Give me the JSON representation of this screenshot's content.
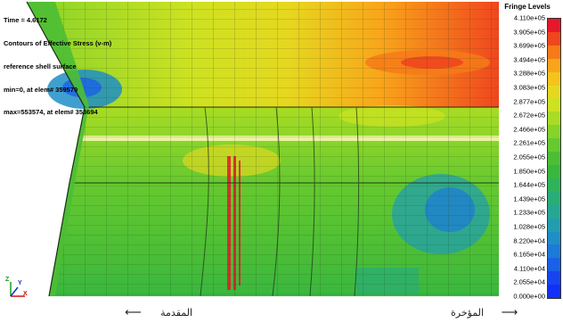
{
  "header": {
    "time_line": "Time =   4.6172",
    "contour_line": "Contours of Effective Stress (v-m)",
    "surface_line": "reference shell surface",
    "min_line": " min=0, at elem# 359579",
    "max_line": " max=553574, at elem# 353694"
  },
  "legend": {
    "title": "Fringe Levels",
    "levels": [
      "4.110e+05",
      "3.905e+05",
      "3.699e+05",
      "3.494e+05",
      "3.288e+05",
      "3.083e+05",
      "2.877e+05",
      "2.672e+05",
      "2.466e+05",
      "2.261e+05",
      "2.055e+05",
      "1.850e+05",
      "1.644e+05",
      "1.439e+05",
      "1.233e+05",
      "1.028e+05",
      "8.220e+04",
      "6.165e+04",
      "4.110e+04",
      "2.055e+04",
      "0.000e+00"
    ],
    "colors": [
      "#e8182a",
      "#f0461e",
      "#f77a18",
      "#f9a51a",
      "#f5c41c",
      "#e6d81f",
      "#cde221",
      "#a9dc24",
      "#86d32a",
      "#66c92f",
      "#4cbe35",
      "#39b73f",
      "#2fb35a",
      "#29ad77",
      "#26a793",
      "#229dae",
      "#1f8ec6",
      "#1c7ad8",
      "#1961e6",
      "#1645f0",
      "#1230f7"
    ]
  },
  "triad": {
    "z_label": "Z",
    "y_label": "Y",
    "x_label": "X"
  },
  "captions": {
    "front_label": "المقدمة",
    "front_arrow": "⟵",
    "rear_label": "المؤخرة",
    "rear_arrow": "⟶"
  }
}
